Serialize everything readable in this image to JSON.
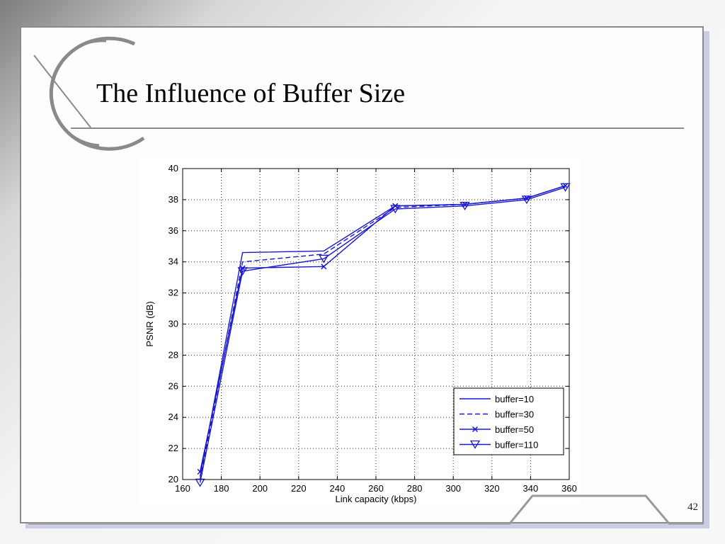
{
  "slide": {
    "title": "The Influence of Buffer Size",
    "page_number": "42"
  },
  "colors": {
    "series": "#1818d0",
    "frame": "#8a8a8a",
    "background": "#f8f8f8"
  },
  "chart_data": {
    "type": "line",
    "title": "",
    "xlabel": "Link capacity (kbps)",
    "ylabel": "PSNR (dB)",
    "xlim": [
      160,
      360
    ],
    "ylim": [
      20,
      40
    ],
    "xticks": [
      160,
      180,
      200,
      220,
      240,
      260,
      280,
      300,
      320,
      340,
      360
    ],
    "yticks": [
      20,
      22,
      24,
      26,
      28,
      30,
      32,
      34,
      36,
      38,
      40
    ],
    "grid": true,
    "legend_position": "bottom-right",
    "series": [
      {
        "name": "buffer=10",
        "line": "solid",
        "marker": "none",
        "x": [
          169,
          191,
          233,
          270,
          306,
          338,
          358
        ],
        "y": [
          20.2,
          34.6,
          34.7,
          37.6,
          37.7,
          38.1,
          38.9
        ]
      },
      {
        "name": "buffer=30",
        "line": "dashed",
        "marker": "none",
        "x": [
          169,
          191,
          233,
          270,
          306,
          338,
          358
        ],
        "y": [
          20.0,
          34.0,
          34.5,
          37.5,
          37.7,
          38.1,
          38.9
        ]
      },
      {
        "name": "buffer=50",
        "line": "solid",
        "marker": "x",
        "x": [
          169,
          191,
          233,
          270,
          306,
          338,
          358
        ],
        "y": [
          20.5,
          33.6,
          33.7,
          37.6,
          37.7,
          38.1,
          38.9
        ]
      },
      {
        "name": "buffer=110",
        "line": "solid",
        "marker": "triangle-down",
        "x": [
          169,
          191,
          233,
          270,
          306,
          338,
          358
        ],
        "y": [
          19.8,
          33.4,
          34.2,
          37.4,
          37.6,
          38.0,
          38.8
        ]
      }
    ]
  }
}
